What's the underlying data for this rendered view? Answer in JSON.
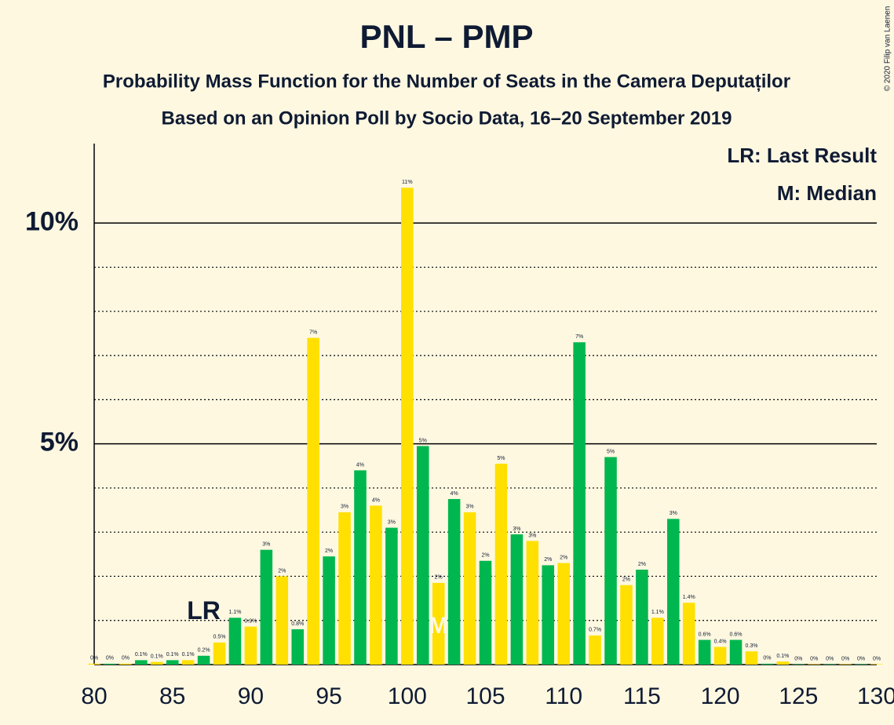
{
  "chart_data": {
    "type": "bar",
    "title": "PNL – PMP",
    "subtitle": "Probability Mass Function for the Number of Seats in the Camera Deputaților",
    "subtitle2": "Based on an Opinion Poll by Socio Data, 16–20 September 2019",
    "copyright": "© 2020 Filip van Laenen",
    "legend": [
      "LR: Last Result",
      "M: Median"
    ],
    "annotations": [
      {
        "text": "LR",
        "x": 87
      },
      {
        "text": "M",
        "x": 102
      }
    ],
    "colors": [
      "#ffe000",
      "#00b74f"
    ],
    "x": [
      80,
      81,
      82,
      83,
      84,
      85,
      86,
      87,
      88,
      89,
      90,
      91,
      92,
      93,
      94,
      95,
      96,
      97,
      98,
      99,
      100,
      101,
      102,
      103,
      104,
      105,
      106,
      107,
      108,
      109,
      110,
      111,
      112,
      113,
      114,
      115,
      116,
      117,
      118,
      119,
      120,
      121,
      122,
      123,
      124,
      125,
      126,
      127,
      128,
      129,
      130
    ],
    "values": [
      0.02,
      0.02,
      0.02,
      0.1,
      0.06,
      0.1,
      0.1,
      0.2,
      0.5,
      1.06,
      0.86,
      2.6,
      2.0,
      0.8,
      7.4,
      2.45,
      3.45,
      4.4,
      3.6,
      3.1,
      10.8,
      4.95,
      1.85,
      3.75,
      3.45,
      2.35,
      4.55,
      2.95,
      2.8,
      2.25,
      2.3,
      7.3,
      0.66,
      4.7,
      1.8,
      2.15,
      1.06,
      3.3,
      1.4,
      0.56,
      0.4,
      0.56,
      0.3,
      0.02,
      0.07,
      0.01,
      0.01,
      0.01,
      0.01,
      0.01,
      0.01
    ],
    "value_labels": [
      "0%",
      "0%",
      "0%",
      "0.1%",
      "0.1%",
      "0.1%",
      "0.1%",
      "0.2%",
      "0.5%",
      "1.1%",
      "0.9%",
      "3%",
      "2%",
      "0.8%",
      "7%",
      "2%",
      "3%",
      "4%",
      "4%",
      "3%",
      "11%",
      "5%",
      "2%",
      "4%",
      "3%",
      "2%",
      "5%",
      "3%",
      "3%",
      "2%",
      "2%",
      "7%",
      "0.7%",
      "5%",
      "2%",
      "2%",
      "1.1%",
      "3%",
      "1.4%",
      "0.6%",
      "0.4%",
      "0.6%",
      "0.3%",
      "0%",
      "0.1%",
      "0%",
      "0%",
      "0%",
      "0%",
      "0%",
      "0%"
    ],
    "xlim": [
      80,
      130
    ],
    "xticks": [
      80,
      85,
      90,
      95,
      100,
      105,
      110,
      115,
      120,
      125,
      130
    ],
    "ylim": [
      0,
      11.8
    ],
    "yticks": [
      {
        "value": 5,
        "label": "5%"
      },
      {
        "value": 10,
        "label": "10%"
      }
    ],
    "minor_yticks": [
      1,
      2,
      3,
      4,
      6,
      7,
      8,
      9
    ],
    "grid": true
  }
}
